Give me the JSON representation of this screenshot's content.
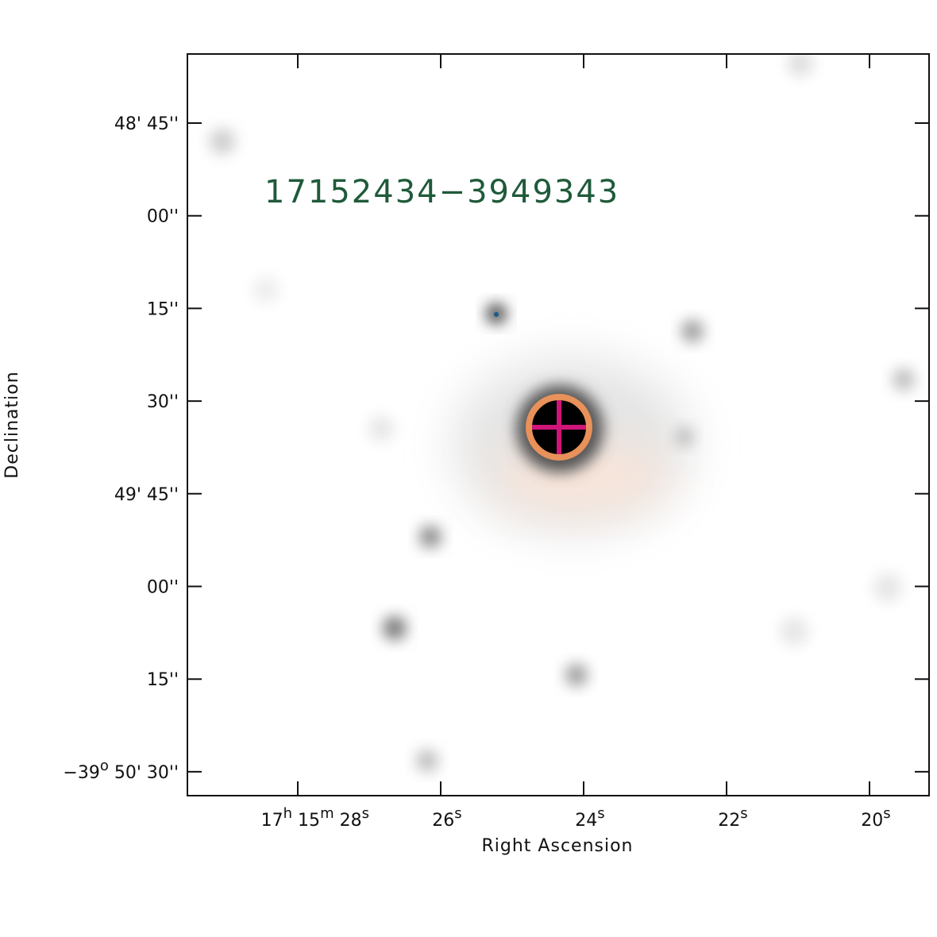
{
  "title": "17152434−3949343",
  "x_axis": {
    "label": "Right Ascension",
    "ticks": [
      [
        "17",
        "h",
        " 15",
        "m",
        " 28",
        "s"
      ],
      [
        "26",
        "s"
      ],
      [
        "24",
        "s"
      ],
      [
        "22",
        "s"
      ],
      [
        "20",
        "s"
      ]
    ]
  },
  "y_axis": {
    "label": "Declination",
    "ticks": [
      [
        "48' 45''"
      ],
      [
        "00''"
      ],
      [
        "15''"
      ],
      [
        "30''"
      ],
      [
        "49' 45''"
      ],
      [
        "00''"
      ],
      [
        "15''"
      ],
      [
        "−39",
        "o",
        " 50' 30''"
      ]
    ]
  }
}
